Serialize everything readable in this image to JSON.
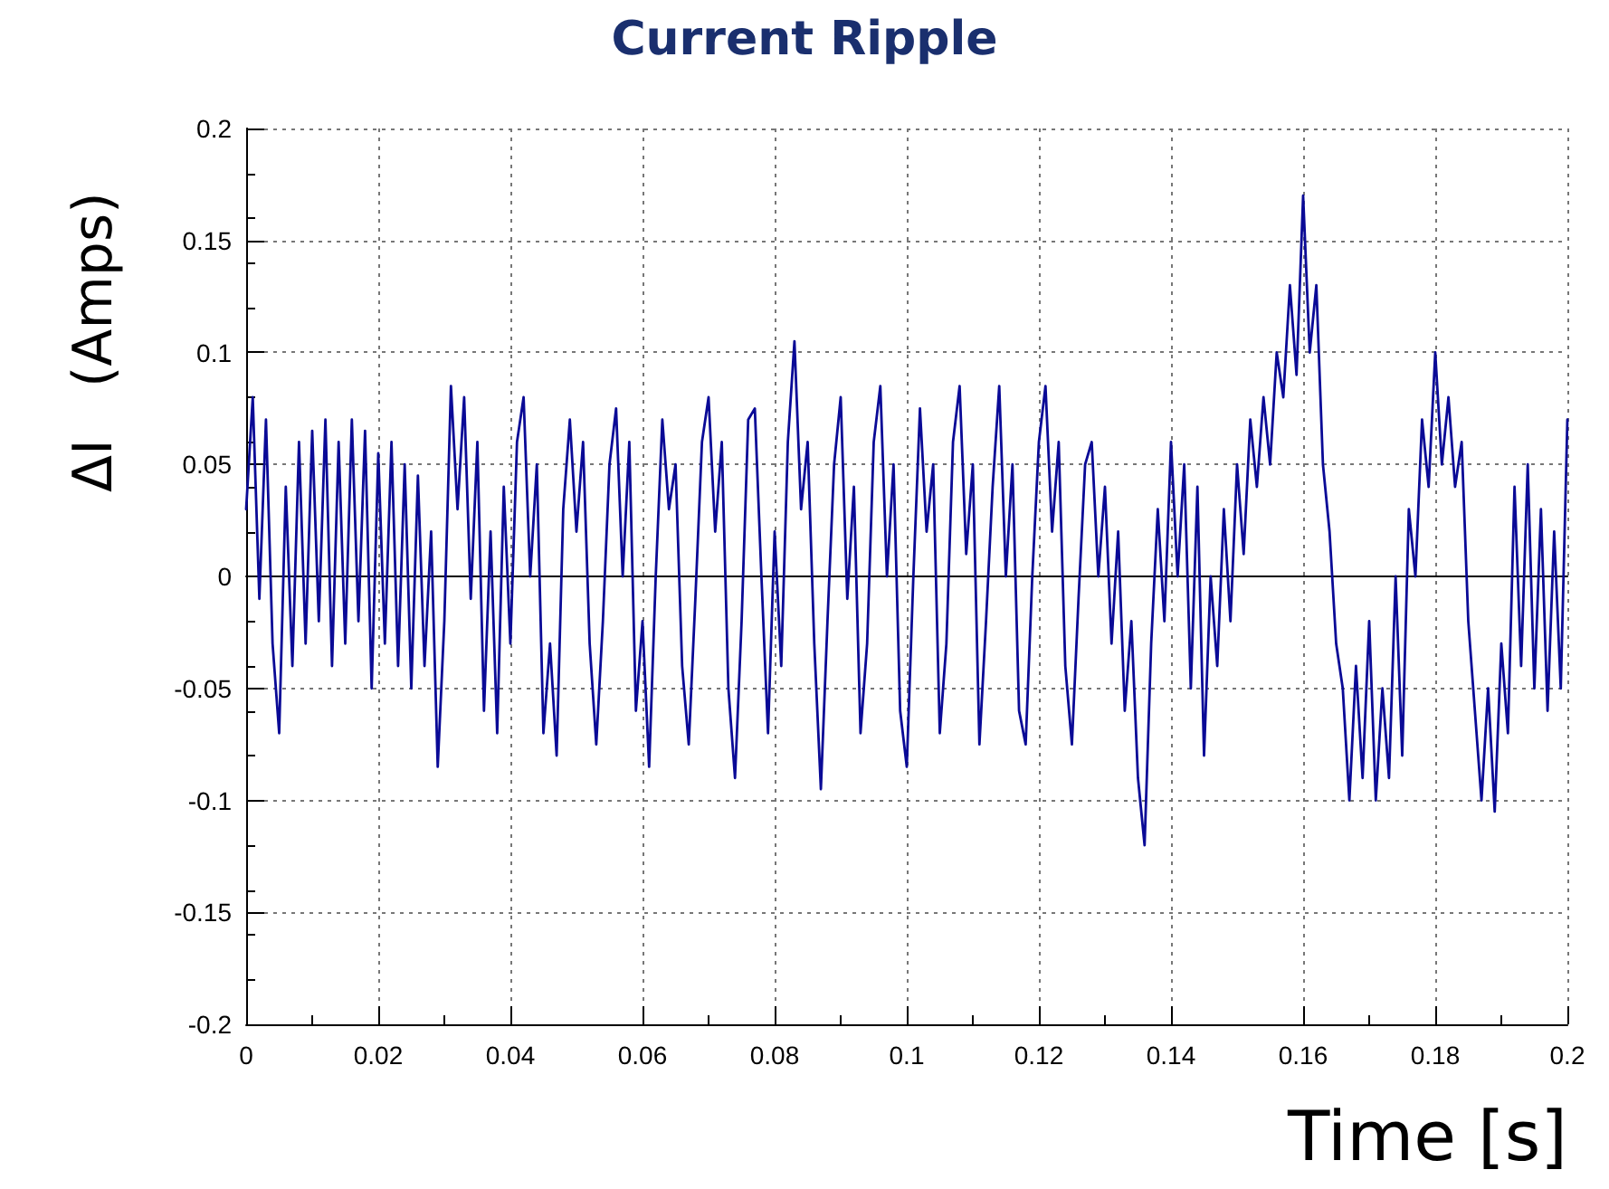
{
  "chart_data": {
    "type": "line",
    "title": "Current Ripple",
    "xlabel": "Time [s]",
    "ylabel": "ΔI   (Amps)",
    "xlim": [
      0,
      0.2
    ],
    "xticks": [
      0,
      0.02,
      0.04,
      0.06,
      0.08,
      0.1,
      0.12,
      0.14,
      0.16,
      0.18,
      0.2
    ],
    "ylim": [
      -0.2,
      0.2
    ],
    "yticks": [
      -0.2,
      -0.15,
      -0.1,
      -0.05,
      0,
      0.05,
      0.1,
      0.15,
      0.2
    ],
    "grid": true,
    "marker": "none",
    "line_style": "solid",
    "x": [
      0,
      0.001,
      0.002,
      0.003,
      0.004,
      0.005,
      0.006,
      0.007,
      0.008,
      0.009,
      0.01,
      0.011,
      0.012,
      0.013,
      0.014,
      0.015,
      0.016,
      0.017,
      0.018,
      0.019,
      0.02,
      0.021,
      0.022,
      0.023,
      0.024,
      0.025,
      0.026,
      0.027,
      0.028,
      0.029,
      0.03,
      0.031,
      0.032,
      0.033,
      0.034,
      0.035,
      0.036,
      0.037,
      0.038,
      0.039,
      0.04,
      0.041,
      0.042,
      0.043,
      0.044,
      0.045,
      0.046,
      0.047,
      0.048,
      0.049,
      0.05,
      0.051,
      0.052,
      0.053,
      0.054,
      0.055,
      0.056,
      0.057,
      0.058,
      0.059,
      0.06,
      0.061,
      0.062,
      0.063,
      0.064,
      0.065,
      0.066,
      0.067,
      0.068,
      0.069,
      0.07,
      0.071,
      0.072,
      0.073,
      0.074,
      0.075,
      0.076,
      0.077,
      0.078,
      0.079,
      0.08,
      0.081,
      0.082,
      0.083,
      0.084,
      0.085,
      0.086,
      0.087,
      0.088,
      0.089,
      0.09,
      0.091,
      0.092,
      0.093,
      0.094,
      0.095,
      0.096,
      0.097,
      0.098,
      0.099,
      0.1,
      0.101,
      0.102,
      0.103,
      0.104,
      0.105,
      0.106,
      0.107,
      0.108,
      0.109,
      0.11,
      0.111,
      0.112,
      0.113,
      0.114,
      0.115,
      0.116,
      0.117,
      0.118,
      0.119,
      0.12,
      0.121,
      0.122,
      0.123,
      0.124,
      0.125,
      0.126,
      0.127,
      0.128,
      0.129,
      0.13,
      0.131,
      0.132,
      0.133,
      0.134,
      0.135,
      0.136,
      0.137,
      0.138,
      0.139,
      0.14,
      0.141,
      0.142,
      0.143,
      0.144,
      0.145,
      0.146,
      0.147,
      0.148,
      0.149,
      0.15,
      0.151,
      0.152,
      0.153,
      0.154,
      0.155,
      0.156,
      0.157,
      0.158,
      0.159,
      0.16,
      0.161,
      0.162,
      0.163,
      0.164,
      0.165,
      0.166,
      0.167,
      0.168,
      0.169,
      0.17,
      0.171,
      0.172,
      0.173,
      0.174,
      0.175,
      0.176,
      0.177,
      0.178,
      0.179,
      0.18,
      0.181,
      0.182,
      0.183,
      0.184,
      0.185,
      0.186,
      0.187,
      0.188,
      0.189,
      0.19,
      0.191,
      0.192,
      0.193,
      0.194,
      0.195,
      0.196,
      0.197,
      0.198,
      0.199,
      0.2
    ],
    "series": [
      {
        "color": "#0a0a96",
        "values": [
          0.03,
          0.08,
          -0.01,
          0.07,
          -0.03,
          -0.07,
          0.04,
          -0.04,
          0.06,
          -0.03,
          0.065,
          -0.02,
          0.07,
          -0.04,
          0.06,
          -0.03,
          0.07,
          -0.02,
          0.065,
          -0.05,
          0.055,
          -0.03,
          0.06,
          -0.04,
          0.05,
          -0.05,
          0.045,
          -0.04,
          0.02,
          -0.085,
          -0.02,
          0.085,
          0.03,
          0.08,
          -0.01,
          0.06,
          -0.06,
          0.02,
          -0.07,
          0.04,
          -0.03,
          0.06,
          0.08,
          0,
          0.05,
          -0.07,
          -0.03,
          -0.08,
          0.03,
          0.07,
          0.02,
          0.06,
          -0.03,
          -0.075,
          -0.02,
          0.05,
          0.075,
          0,
          0.06,
          -0.06,
          -0.02,
          -0.085,
          0,
          0.07,
          0.03,
          0.05,
          -0.04,
          -0.075,
          -0.01,
          0.06,
          0.08,
          0.02,
          0.06,
          -0.05,
          -0.09,
          -0.02,
          0.07,
          0.075,
          0,
          -0.07,
          0.02,
          -0.04,
          0.06,
          0.105,
          0.03,
          0.06,
          -0.03,
          -0.095,
          -0.02,
          0.05,
          0.08,
          -0.01,
          0.04,
          -0.07,
          -0.03,
          0.06,
          0.085,
          0,
          0.05,
          -0.06,
          -0.085,
          0,
          0.075,
          0.02,
          0.05,
          -0.07,
          -0.03,
          0.06,
          0.085,
          0.01,
          0.05,
          -0.075,
          -0.02,
          0.04,
          0.085,
          0,
          0.05,
          -0.06,
          -0.075,
          0,
          0.06,
          0.085,
          0.02,
          0.06,
          -0.04,
          -0.075,
          -0.01,
          0.05,
          0.06,
          0,
          0.04,
          -0.03,
          0.02,
          -0.06,
          -0.02,
          -0.09,
          -0.12,
          -0.03,
          0.03,
          -0.02,
          0.06,
          0,
          0.05,
          -0.05,
          0.04,
          -0.08,
          0,
          -0.04,
          0.03,
          -0.02,
          0.05,
          0.01,
          0.07,
          0.04,
          0.08,
          0.05,
          0.1,
          0.08,
          0.13,
          0.09,
          0.17,
          0.1,
          0.13,
          0.05,
          0.02,
          -0.03,
          -0.05,
          -0.1,
          -0.04,
          -0.09,
          -0.02,
          -0.1,
          -0.05,
          -0.09,
          0,
          -0.08,
          0.03,
          0,
          0.07,
          0.04,
          0.1,
          0.05,
          0.08,
          0.04,
          0.06,
          -0.02,
          -0.06,
          -0.1,
          -0.05,
          -0.105,
          -0.03,
          -0.07,
          0.04,
          -0.04,
          0.05,
          -0.05,
          0.03,
          -0.06,
          0.02,
          -0.05,
          0.07
        ]
      }
    ]
  }
}
